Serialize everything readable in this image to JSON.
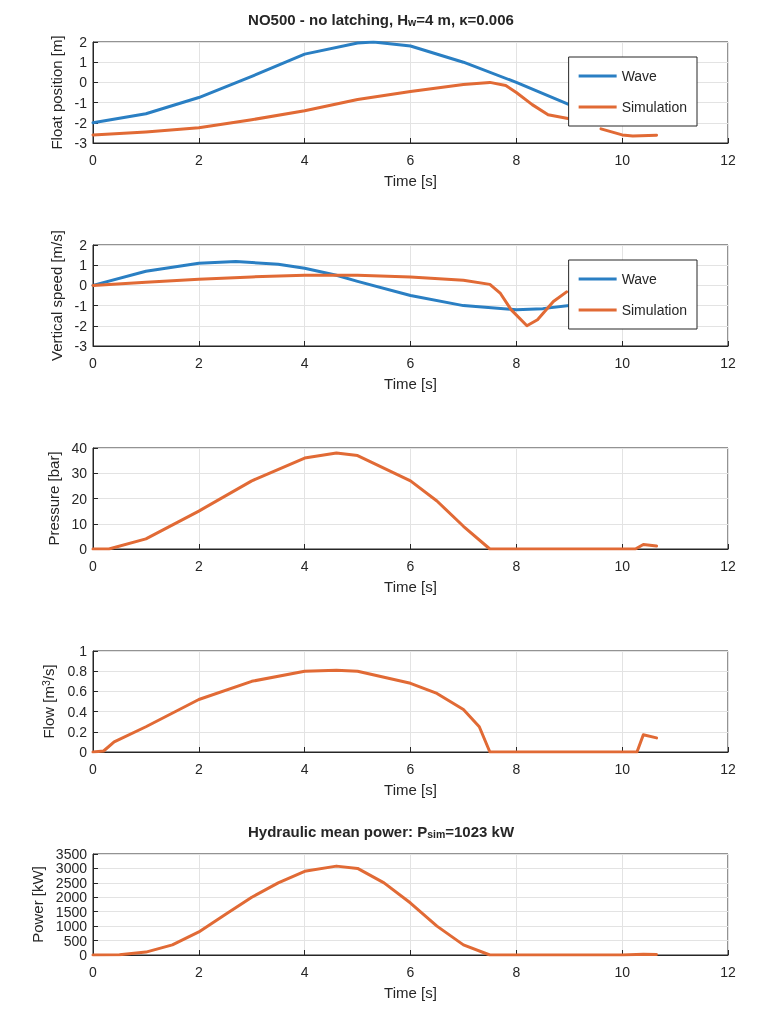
{
  "chart_data": [
    {
      "type": "line",
      "title": "NO500 - no latching, H$_{w}$=4 m, κ=0.006",
      "xlabel": "Time [s]",
      "ylabel": "Float position [m]",
      "xlim": [
        0,
        12
      ],
      "xticks": [
        0,
        2,
        4,
        6,
        8,
        10,
        12
      ],
      "ylim": [
        -3,
        2
      ],
      "yticks": [
        -3,
        -2,
        -1,
        0,
        1,
        2
      ],
      "grid": true,
      "legend": "top right",
      "series": [
        {
          "name": "Wave",
          "color": "#2a7fc3",
          "x": [
            0,
            1,
            2,
            3,
            4,
            5,
            5.3,
            6,
            7,
            8,
            9
          ],
          "values": [
            -2.0,
            -1.55,
            -0.75,
            0.3,
            1.4,
            1.95,
            2.0,
            1.8,
            1.0,
            0.0,
            -1.1
          ]
        },
        {
          "name": "Simulation",
          "color": "#e16a35",
          "x": [
            0,
            1,
            2,
            3,
            4,
            5,
            6,
            7,
            7.5,
            7.8,
            8,
            8.3,
            8.6,
            9,
            9.3,
            9.6,
            9.8,
            10,
            10.2,
            10.65
          ],
          "values": [
            -2.6,
            -2.45,
            -2.25,
            -1.85,
            -1.4,
            -0.85,
            -0.45,
            -0.1,
            0.0,
            -0.15,
            -0.5,
            -1.1,
            -1.6,
            -1.8,
            null,
            -2.3,
            -2.45,
            -2.6,
            -2.65,
            -2.62
          ]
        }
      ]
    },
    {
      "type": "line",
      "xlabel": "Time [s]",
      "ylabel": "Vertical speed [m/s]",
      "xlim": [
        0,
        12
      ],
      "xticks": [
        0,
        2,
        4,
        6,
        8,
        10,
        12
      ],
      "ylim": [
        -3,
        2
      ],
      "yticks": [
        -3,
        -2,
        -1,
        0,
        1,
        2
      ],
      "grid": true,
      "legend": "top right",
      "series": [
        {
          "name": "Wave",
          "color": "#2a7fc3",
          "x": [
            0,
            1,
            2,
            2.7,
            3.5,
            4,
            4.6,
            5,
            6,
            7,
            8,
            8.5,
            9
          ],
          "values": [
            0,
            0.7,
            1.1,
            1.18,
            1.05,
            0.85,
            0.5,
            0.2,
            -0.5,
            -1.0,
            -1.2,
            -1.15,
            -1.0
          ]
        },
        {
          "name": "Simulation",
          "color": "#e16a35",
          "x": [
            0,
            1,
            2,
            3,
            4,
            5,
            6,
            7,
            7.5,
            7.7,
            7.9,
            8.2,
            8.4,
            8.7,
            8.95
          ],
          "values": [
            0,
            0.15,
            0.3,
            0.42,
            0.5,
            0.5,
            0.42,
            0.25,
            0.05,
            -0.4,
            -1.2,
            -2.0,
            -1.7,
            -0.8,
            -0.32
          ]
        }
      ]
    },
    {
      "type": "line",
      "xlabel": "Time [s]",
      "ylabel": "Pressure [bar]",
      "xlim": [
        0,
        12
      ],
      "xticks": [
        0,
        2,
        4,
        6,
        8,
        10,
        12
      ],
      "ylim": [
        0,
        40
      ],
      "yticks": [
        0,
        10,
        20,
        30,
        40
      ],
      "grid": true,
      "series": [
        {
          "color": "#e16a35",
          "x": [
            0,
            0.3,
            1,
            2,
            3,
            4,
            4.6,
            5,
            6,
            6.5,
            7,
            7.5,
            8,
            9,
            10,
            10.25,
            10.4,
            10.65
          ],
          "values": [
            0,
            0,
            4,
            15,
            27,
            36,
            38,
            37,
            27,
            19,
            9,
            0,
            0,
            0,
            0,
            0,
            1.8,
            1.2
          ]
        }
      ]
    },
    {
      "type": "line",
      "xlabel": "Time [s]",
      "ylabel": "Flow [m$^{3}$/s]",
      "xlim": [
        0,
        12
      ],
      "xticks": [
        0,
        2,
        4,
        6,
        8,
        10,
        12
      ],
      "ylim": [
        0,
        1
      ],
      "yticks": [
        0,
        0.2,
        0.4,
        0.6,
        0.8,
        1
      ],
      "grid": true,
      "series": [
        {
          "color": "#e16a35",
          "x": [
            0,
            0.2,
            0.4,
            1,
            2,
            3,
            4,
            4.6,
            5,
            6,
            6.5,
            7,
            7.3,
            7.5,
            8,
            9,
            10,
            10.28,
            10.4,
            10.65
          ],
          "values": [
            0,
            0.01,
            0.1,
            0.25,
            0.52,
            0.7,
            0.8,
            0.81,
            0.8,
            0.68,
            0.58,
            0.42,
            0.25,
            0,
            0,
            0,
            0,
            0,
            0.17,
            0.14
          ]
        }
      ]
    },
    {
      "type": "line",
      "title": "Hydraulic mean power: P$_{sim}$=1023 kW",
      "xlabel": "Time [s]",
      "ylabel": "Power [kW]",
      "xlim": [
        0,
        12
      ],
      "xticks": [
        0,
        2,
        4,
        6,
        8,
        10,
        12
      ],
      "ylim": [
        0,
        3500
      ],
      "yticks": [
        0,
        500,
        1000,
        1500,
        2000,
        2500,
        3000,
        3500
      ],
      "grid": true,
      "series": [
        {
          "color": "#e16a35",
          "x": [
            0,
            0.5,
            1,
            1.5,
            2,
            2.5,
            3,
            3.5,
            4,
            4.6,
            5,
            5.5,
            6,
            6.5,
            7,
            7.5,
            8,
            9,
            10,
            10.4,
            10.65
          ],
          "values": [
            0,
            10,
            100,
            350,
            800,
            1400,
            2000,
            2500,
            2900,
            3080,
            3000,
            2500,
            1800,
            1000,
            350,
            0,
            0,
            0,
            0,
            30,
            20
          ]
        }
      ]
    }
  ]
}
